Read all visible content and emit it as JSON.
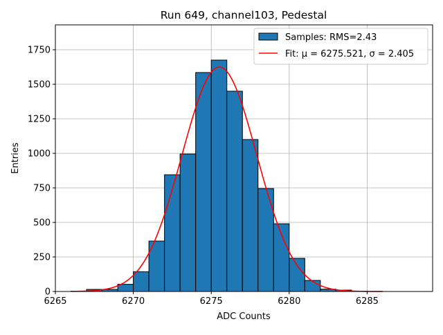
{
  "chart_data": {
    "type": "bar",
    "title": "Run 649, channel103, Pedestal",
    "xlabel": "ADC Counts",
    "ylabel": "Entries",
    "xlim": [
      6265,
      6289.2
    ],
    "ylim": [
      0,
      1930
    ],
    "grid": true,
    "legend_position": "upper-right",
    "xticks": [
      6265,
      6270,
      6275,
      6280,
      6285
    ],
    "xtick_labels": [
      "6265",
      "6270",
      "6275",
      "6280",
      "6285"
    ],
    "yticks": [
      0,
      250,
      500,
      750,
      1000,
      1250,
      1500,
      1750
    ],
    "ytick_labels": [
      "0",
      "250",
      "500",
      "750",
      "1000",
      "1250",
      "1500",
      "1750"
    ],
    "series": [
      {
        "name": "Samples: RMS=2.43",
        "kind": "histogram",
        "color": "#1f77b4",
        "edge_color": "#000000",
        "bin_width": 1.0,
        "bin_starts": [
          6266,
          6267,
          6268,
          6269,
          6270,
          6271,
          6272,
          6273,
          6274,
          6275,
          6276,
          6277,
          6278,
          6279,
          6280,
          6281,
          6282,
          6283,
          6284,
          6285
        ],
        "values": [
          2,
          15,
          15,
          52,
          143,
          365,
          845,
          995,
          1585,
          1675,
          1450,
          1100,
          745,
          490,
          240,
          80,
          17,
          10,
          2,
          0
        ]
      },
      {
        "name": "Fit: μ = 6275.521, σ = 2.405",
        "kind": "gaussian",
        "color": "#ff0000",
        "mu": 6275.521,
        "sigma": 2.405,
        "amplitude": 1625,
        "x_range": [
          6266,
          6286
        ]
      }
    ]
  }
}
